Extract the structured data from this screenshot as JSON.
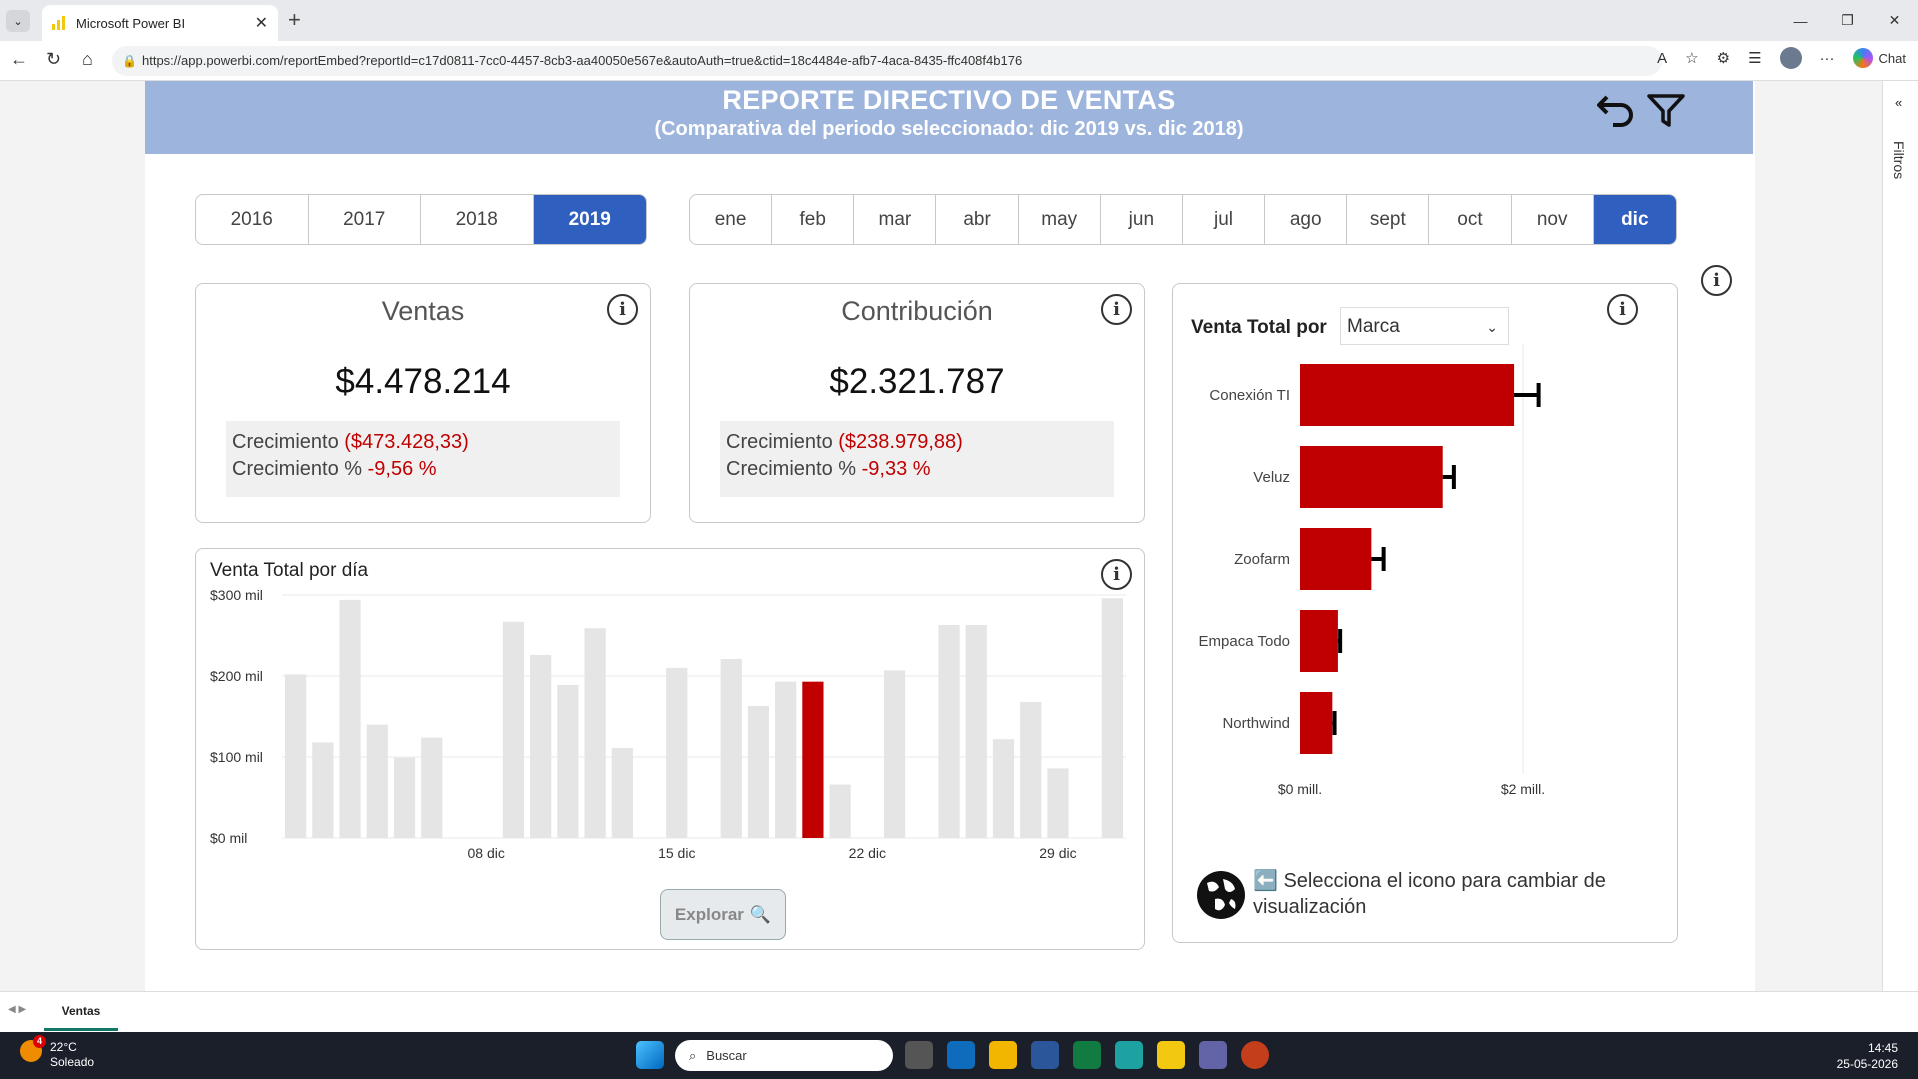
{
  "browser": {
    "tab_title": "Microsoft Power BI",
    "url": "https://app.powerbi.com/reportEmbed?reportId=c17d0811-7cc0-4457-8cb3-aa40050e567e&autoAuth=true&ctid=18c4484e-afb7-4aca-8435-ffc408f4b176",
    "chat_label": "Chat"
  },
  "header": {
    "title": "REPORTE DIRECTIVO DE VENTAS",
    "subtitle": "(Comparativa del periodo seleccionado: dic 2019 vs. dic 2018)"
  },
  "years": [
    "2016",
    "2017",
    "2018",
    "2019"
  ],
  "selected_year": "2019",
  "months": [
    "ene",
    "feb",
    "mar",
    "abr",
    "may",
    "jun",
    "jul",
    "ago",
    "sept",
    "oct",
    "nov",
    "dic"
  ],
  "selected_month": "dic",
  "kpi_ventas": {
    "title": "Ventas",
    "value": "$4.478.214",
    "growth_label": "Crecimiento",
    "growth_value": "($473.428,33)",
    "growth_pct_label": "Crecimiento %",
    "growth_pct_value": "-9,56 %"
  },
  "kpi_contrib": {
    "title": "Contribución",
    "value": "$2.321.787",
    "growth_label": "Crecimiento",
    "growth_value": "($238.979,88)",
    "growth_pct_label": "Crecimiento %",
    "growth_pct_value": "-9,33 %"
  },
  "daily": {
    "title": "Venta Total por día",
    "explore_label": "Explorar"
  },
  "brand": {
    "title": "Venta Total por",
    "dropdown_value": "Marca",
    "hint": "⬅️ Selecciona el icono para cambiar de visualización"
  },
  "sidepanel": {
    "label": "Filtros"
  },
  "page": {
    "tab": "Ventas"
  },
  "taskbar": {
    "temp": "22°C",
    "weather": "Soleado",
    "search": "Buscar",
    "time": "14:45",
    "date": "25-05-2026"
  },
  "colors": {
    "accent": "#2f5fbf",
    "negative": "#c00000",
    "highlight": "#0033a0",
    "bar_gray": "#e5e5e5"
  },
  "chart_data": [
    {
      "type": "bar",
      "title": "Venta Total por día",
      "y_ticks": [
        "$0 mil",
        "$100 mil",
        "$200 mil",
        "$300 mil"
      ],
      "x_ticks": [
        "08 dic",
        "15 dic",
        "22 dic",
        "29 dic"
      ],
      "ylim": [
        0,
        300
      ],
      "days": [
        1,
        2,
        3,
        4,
        5,
        6,
        7,
        8,
        9,
        10,
        11,
        12,
        13,
        14,
        15,
        16,
        17,
        18,
        19,
        20,
        21,
        22,
        23,
        24,
        25,
        26,
        27,
        28,
        29,
        30,
        31
      ],
      "values": [
        202,
        118,
        294,
        140,
        99,
        124,
        0,
        0,
        267,
        226,
        189,
        259,
        111,
        0,
        210,
        0,
        221,
        163,
        193,
        193,
        66,
        0,
        207,
        0,
        263,
        263,
        122,
        168,
        86,
        0,
        296
      ],
      "highlight": {
        "20": "red",
        "30": "blue"
      }
    },
    {
      "type": "bar",
      "orientation": "horizontal",
      "categories": [
        "Conexión TI",
        "Veluz",
        "Zoofarm",
        "Empaca Todo",
        "Northwind"
      ],
      "values": [
        1.92,
        1.28,
        0.64,
        0.34,
        0.29
      ],
      "error": [
        0.22,
        0.1,
        0.11,
        0.02,
        0.02
      ],
      "x_ticks": [
        "$0 mill.",
        "$2 mill."
      ],
      "xlim": [
        0,
        2.0
      ]
    }
  ]
}
